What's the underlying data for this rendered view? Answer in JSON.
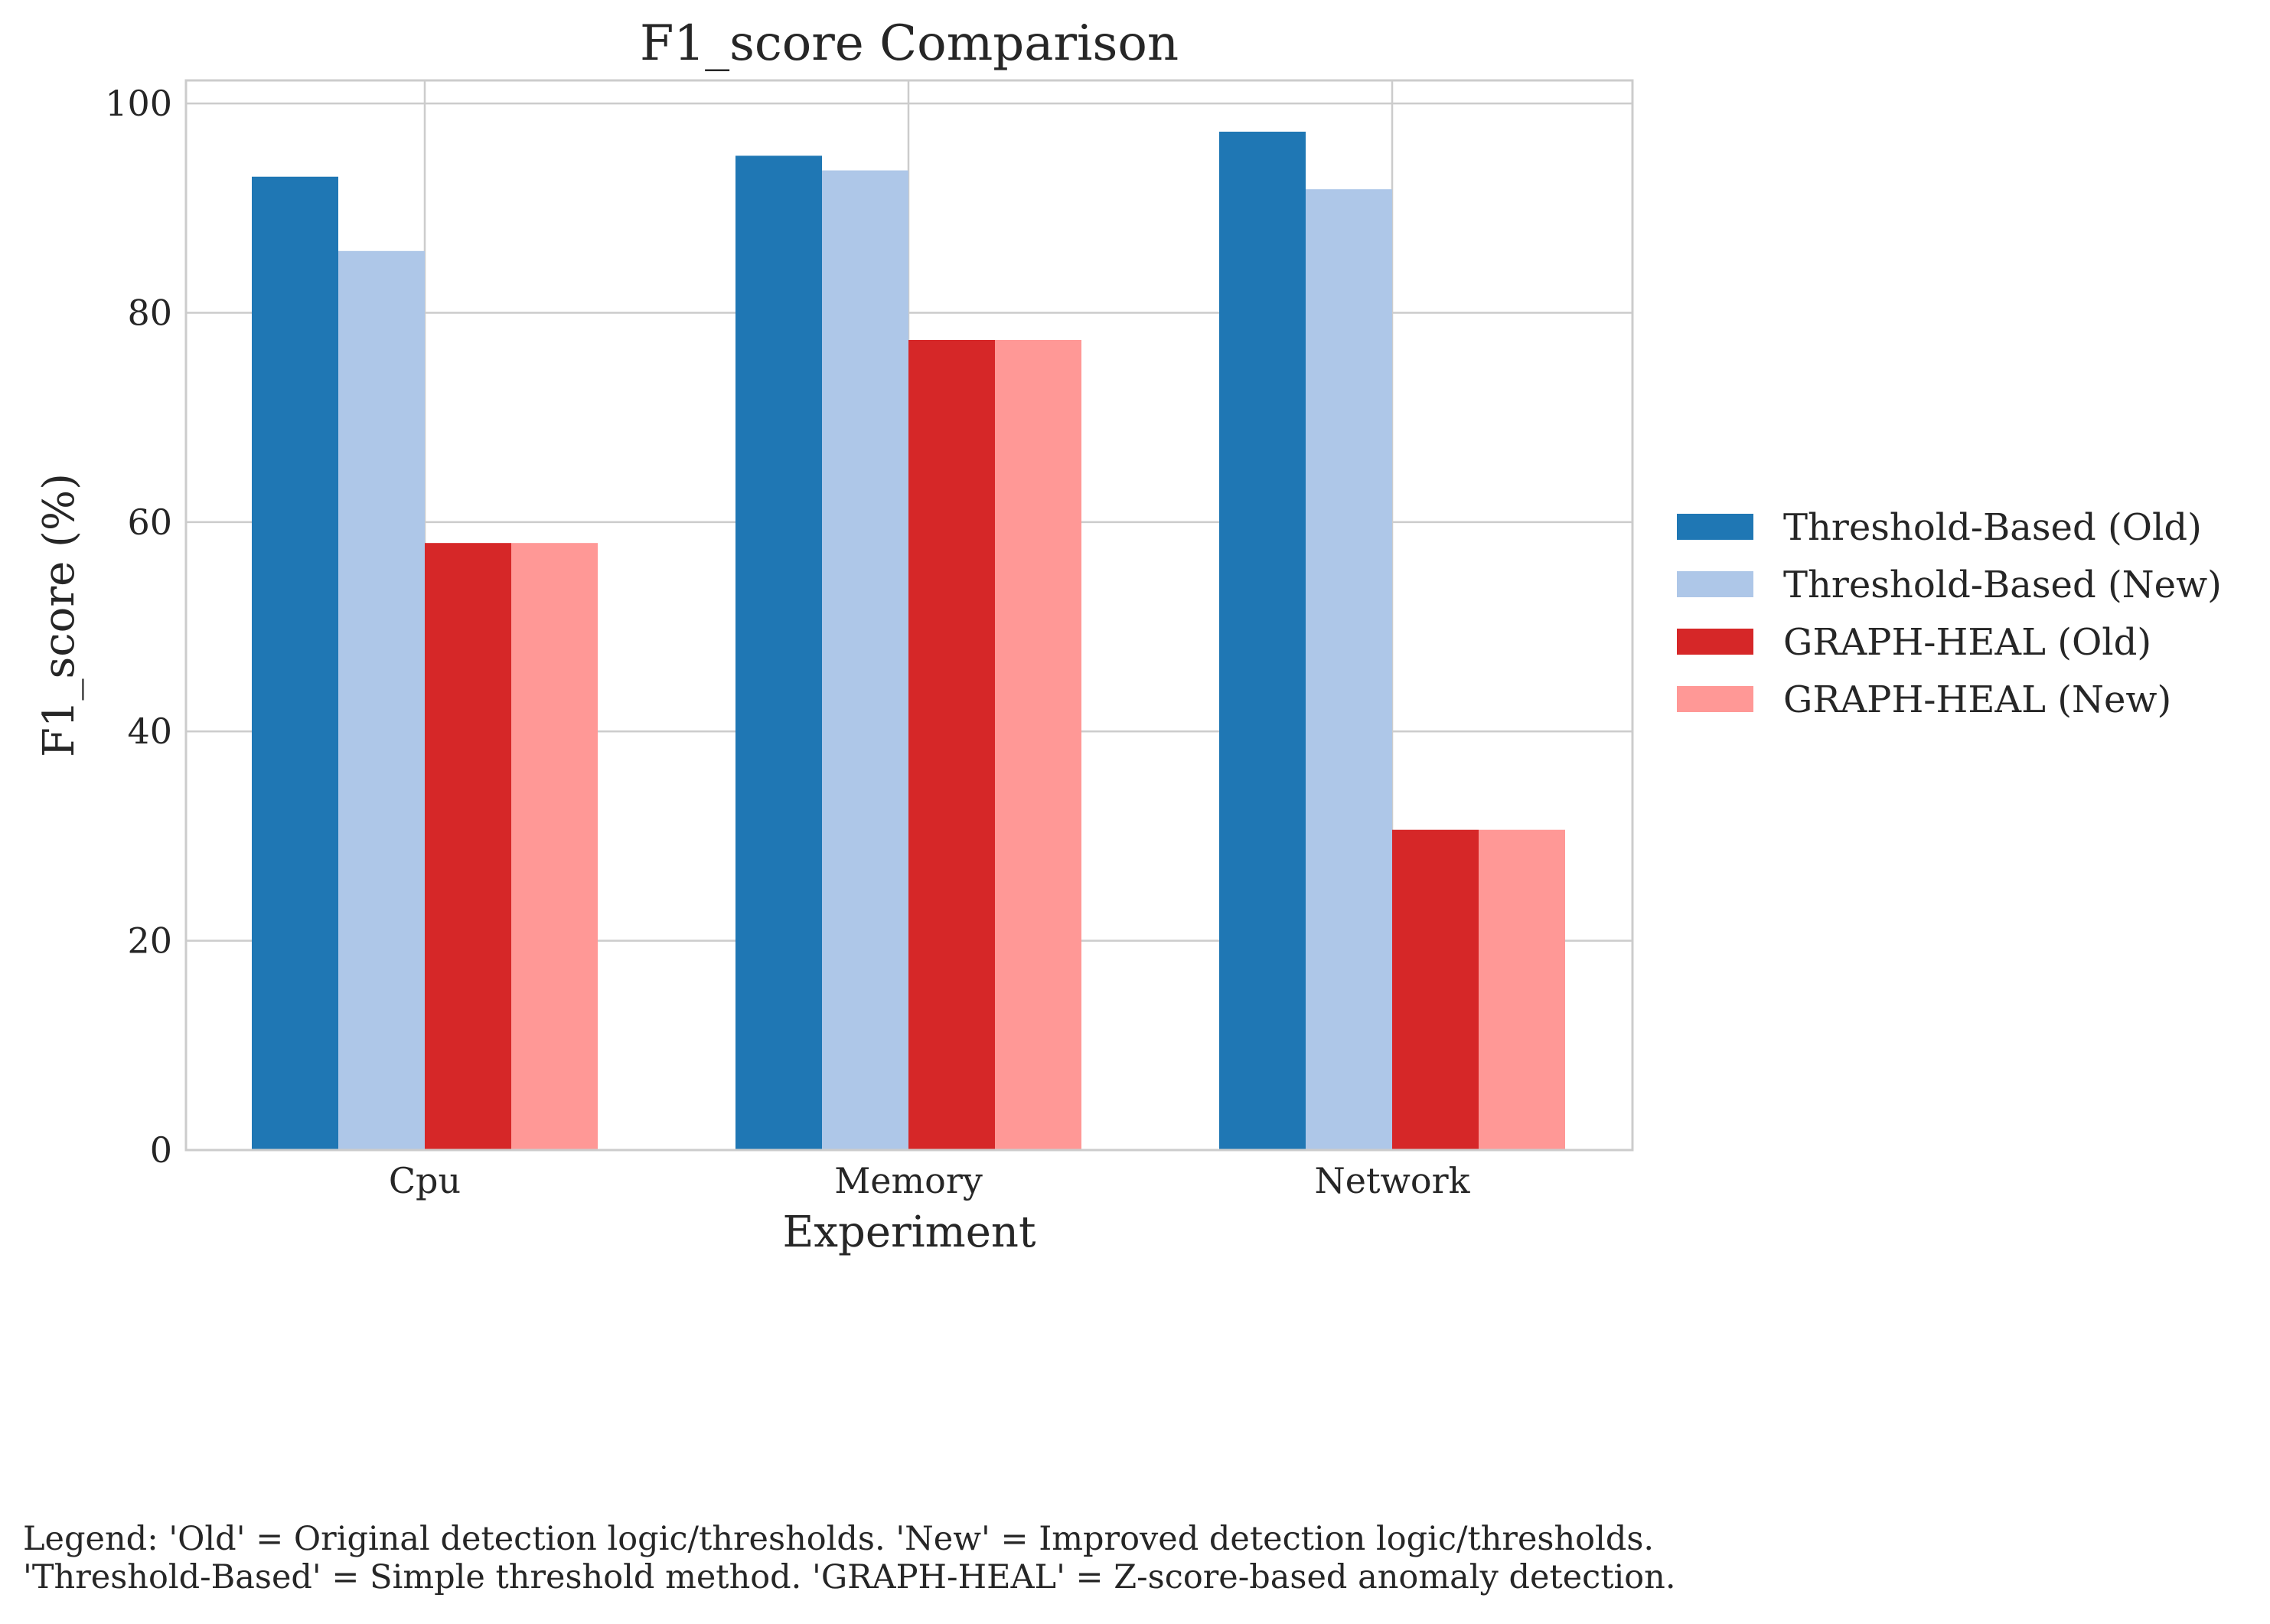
{
  "chart_data": {
    "type": "bar",
    "title": "F1_score Comparison",
    "xlabel": "Experiment",
    "ylabel": "F1_score (%)",
    "categories": [
      "Cpu",
      "Memory",
      "Network"
    ],
    "ylim": [
      0,
      102.2
    ],
    "yticks": [
      0,
      20,
      40,
      60,
      80,
      100
    ],
    "grid": true,
    "legend_position": "right",
    "series": [
      {
        "name": "Threshold-Based (Old)",
        "color": "#1f77b4",
        "values": [
          93.0,
          95.0,
          97.3
        ]
      },
      {
        "name": "Threshold-Based (New)",
        "color": "#aec7e8",
        "values": [
          85.9,
          93.6,
          91.8
        ]
      },
      {
        "name": "GRAPH-HEAL (Old)",
        "color": "#d62728",
        "values": [
          58.0,
          77.4,
          30.6
        ]
      },
      {
        "name": "GRAPH-HEAL (New)",
        "color": "#ff9896",
        "values": [
          58.0,
          77.4,
          30.6
        ]
      }
    ]
  },
  "footnote": {
    "line1": "Legend: 'Old' = Original detection logic/thresholds. 'New' = Improved detection logic/thresholds.",
    "line2": "'Threshold-Based' = Simple threshold method. 'GRAPH-HEAL' = Z-score-based anomaly detection."
  }
}
